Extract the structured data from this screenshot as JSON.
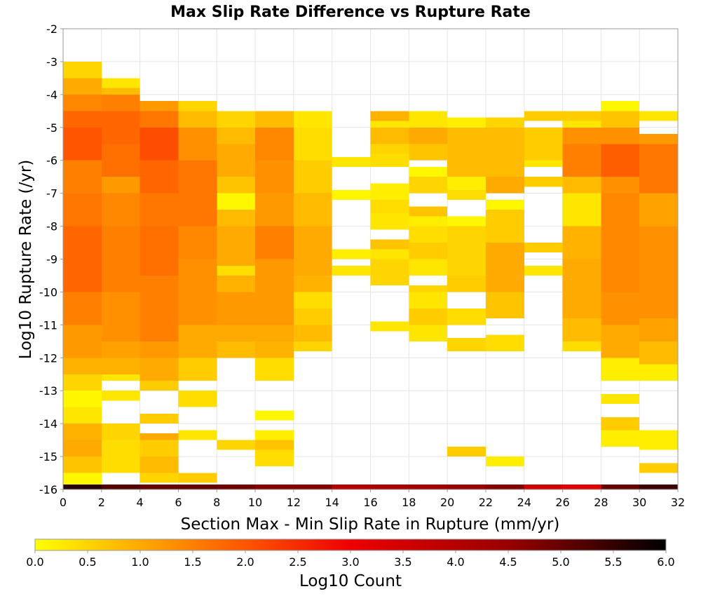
{
  "chart_data": {
    "type": "heatmap",
    "title": "Max Slip Rate Difference vs Rupture Rate",
    "xlabel": "Section Max - Min Slip Rate in Rupture (mm/yr)",
    "ylabel": "Log10 Rupture Rate (/yr)",
    "xlim": [
      0,
      32
    ],
    "ylim": [
      -16,
      -2
    ],
    "x_ticks": [
      "0",
      "2",
      "4",
      "6",
      "8",
      "10",
      "12",
      "14",
      "16",
      "18",
      "20",
      "22",
      "24",
      "26",
      "28",
      "30",
      "32"
    ],
    "y_ticks": [
      "-2",
      "-3",
      "-4",
      "-5",
      "-6",
      "-7",
      "-8",
      "-9",
      "-10",
      "-11",
      "-12",
      "-13",
      "-14",
      "-15",
      "-16"
    ],
    "grid": true,
    "x_bin_width": 2,
    "y_bin_height": 0.25,
    "colorbar": {
      "label": "Log10 Count",
      "range": [
        0,
        6
      ],
      "ticks": [
        "0.0",
        "0.5",
        "1.0",
        "1.5",
        "2.0",
        "2.5",
        "3.0",
        "3.5",
        "4.0",
        "4.5",
        "5.0",
        "5.5",
        "6.0"
      ],
      "stops": [
        {
          "value": 0.0,
          "color": "#ffff00"
        },
        {
          "value": 1.0,
          "color": "#ffaa00"
        },
        {
          "value": 2.0,
          "color": "#ff5500"
        },
        {
          "value": 3.0,
          "color": "#ee0000"
        },
        {
          "value": 4.5,
          "color": "#990000"
        },
        {
          "value": 6.0,
          "color": "#000000"
        }
      ]
    },
    "columns": [
      {
        "x0": 0,
        "x1": 2,
        "segments": [
          [
            -16,
            -15.5,
            0.1
          ],
          [
            -15.5,
            -15,
            0.7
          ],
          [
            -15,
            -14.5,
            1.0
          ],
          [
            -14.5,
            -14,
            0.9
          ],
          [
            -14,
            -13.5,
            0.3
          ],
          [
            -13.5,
            -13,
            0.1
          ],
          [
            -13,
            -12.5,
            0.5
          ],
          [
            -12.5,
            -12,
            0.9
          ],
          [
            -12,
            -11,
            1.2
          ],
          [
            -11,
            -10,
            1.5
          ],
          [
            -10,
            -8,
            1.8
          ],
          [
            -8,
            -7,
            1.6
          ],
          [
            -7,
            -6,
            1.5
          ],
          [
            -6,
            -5,
            2.0
          ],
          [
            -5,
            -4.5,
            1.8
          ],
          [
            -4.5,
            -4,
            1.4
          ],
          [
            -4,
            -3.5,
            1.0
          ],
          [
            -3.5,
            -3,
            0.5
          ]
        ]
      },
      {
        "x0": 2,
        "x1": 4,
        "segments": [
          [
            -15.5,
            -15,
            0.4
          ],
          [
            -15,
            -14.5,
            0.4
          ],
          [
            -14.5,
            -14,
            0.5
          ],
          [
            -13.3,
            -13,
            0.3
          ],
          [
            -12.7,
            -12.5,
            0.3
          ],
          [
            -12.5,
            -12,
            0.9
          ],
          [
            -12,
            -11.5,
            1.1
          ],
          [
            -11.5,
            -10,
            1.3
          ],
          [
            -10,
            -8,
            1.5
          ],
          [
            -8,
            -7,
            1.4
          ],
          [
            -7,
            -6.5,
            1.2
          ],
          [
            -6.5,
            -5.5,
            1.7
          ],
          [
            -5.5,
            -4.5,
            1.8
          ],
          [
            -4.5,
            -4,
            1.5
          ],
          [
            -4,
            -3.8,
            0.8
          ],
          [
            -3.8,
            -3.5,
            0.3
          ]
        ]
      },
      {
        "x0": 4,
        "x1": 6,
        "segments": [
          [
            -15.8,
            -15.5,
            0.5
          ],
          [
            -15.5,
            -15,
            0.8
          ],
          [
            -15,
            -14.5,
            0.6
          ],
          [
            -14.5,
            -14.3,
            1.0
          ],
          [
            -14,
            -13.7,
            0.6
          ],
          [
            -13,
            -12.7,
            0.6
          ],
          [
            -12.7,
            -12,
            1.0
          ],
          [
            -12,
            -11.5,
            1.2
          ],
          [
            -11.5,
            -9.5,
            1.5
          ],
          [
            -9.5,
            -8,
            1.7
          ],
          [
            -8,
            -7,
            1.6
          ],
          [
            -7,
            -6,
            1.8
          ],
          [
            -6,
            -5,
            2.1
          ],
          [
            -5,
            -4.5,
            1.6
          ],
          [
            -4.5,
            -4.2,
            1.2
          ]
        ]
      },
      {
        "x0": 6,
        "x1": 8,
        "segments": [
          [
            -15.8,
            -15.5,
            0.6
          ],
          [
            -14.5,
            -14.2,
            0.3
          ],
          [
            -13.5,
            -13,
            0.4
          ],
          [
            -12.7,
            -12,
            0.6
          ],
          [
            -12,
            -11,
            1.0
          ],
          [
            -11,
            -9,
            1.3
          ],
          [
            -9,
            -8,
            1.4
          ],
          [
            -8,
            -6,
            1.6
          ],
          [
            -6,
            -5,
            1.3
          ],
          [
            -5,
            -4.5,
            0.8
          ],
          [
            -4.5,
            -4.2,
            0.5
          ]
        ]
      },
      {
        "x0": 8,
        "x1": 10,
        "segments": [
          [
            -14.8,
            -14.5,
            0.5
          ],
          [
            -12,
            -11.5,
            0.8
          ],
          [
            -11.5,
            -11,
            1.0
          ],
          [
            -11,
            -10,
            1.2
          ],
          [
            -10,
            -9.5,
            0.9
          ],
          [
            -9.5,
            -9.2,
            0.4
          ],
          [
            -9.2,
            -8,
            1.0
          ],
          [
            -8,
            -7.5,
            0.8
          ],
          [
            -7.5,
            -7,
            0.1
          ],
          [
            -7,
            -6.5,
            0.7
          ],
          [
            -6.5,
            -5.5,
            1.0
          ],
          [
            -5.5,
            -5,
            0.8
          ],
          [
            -5,
            -4.5,
            0.5
          ]
        ]
      },
      {
        "x0": 10,
        "x1": 12,
        "segments": [
          [
            -15.3,
            -14.8,
            0.4
          ],
          [
            -14.8,
            -14.5,
            0.7
          ],
          [
            -14.5,
            -14.2,
            0.2
          ],
          [
            -13.9,
            -13.6,
            0.1
          ],
          [
            -12.7,
            -12,
            0.4
          ],
          [
            -12,
            -11.5,
            0.9
          ],
          [
            -11.5,
            -11,
            1.0
          ],
          [
            -11,
            -9,
            1.2
          ],
          [
            -9,
            -8,
            1.5
          ],
          [
            -8,
            -7,
            1.2
          ],
          [
            -7,
            -6,
            1.3
          ],
          [
            -6,
            -5,
            1.4
          ],
          [
            -5,
            -4.5,
            0.8
          ]
        ]
      },
      {
        "x0": 12,
        "x1": 14,
        "segments": [
          [
            -11.8,
            -11.5,
            0.5
          ],
          [
            -11.5,
            -11,
            0.8
          ],
          [
            -11,
            -10.5,
            0.6
          ],
          [
            -10.5,
            -10,
            0.4
          ],
          [
            -10,
            -9.5,
            0.9
          ],
          [
            -9.5,
            -8,
            1.0
          ],
          [
            -8,
            -7,
            0.8
          ],
          [
            -7,
            -6,
            0.6
          ],
          [
            -6,
            -5,
            0.4
          ],
          [
            -5,
            -4.5,
            0.3
          ]
        ]
      },
      {
        "x0": 14,
        "x1": 16,
        "segments": [
          [
            -9.5,
            -9.2,
            0.3
          ],
          [
            -9,
            -8.7,
            0.2
          ],
          [
            -7.2,
            -6.9,
            0.1
          ],
          [
            -6.2,
            -5.9,
            0.3
          ]
        ]
      },
      {
        "x0": 16,
        "x1": 18,
        "segments": [
          [
            -11.2,
            -10.9,
            0.3
          ],
          [
            -9.8,
            -9.5,
            0.5
          ],
          [
            -9.5,
            -9,
            0.5
          ],
          [
            -9,
            -8.7,
            0.3
          ],
          [
            -8.7,
            -8.4,
            0.7
          ],
          [
            -8.1,
            -7.6,
            0.3
          ],
          [
            -7.6,
            -7.2,
            0.4
          ],
          [
            -7.2,
            -6.7,
            0.2
          ],
          [
            -6.2,
            -5.8,
            0.4
          ],
          [
            -5.8,
            -5.5,
            0.5
          ],
          [
            -5.5,
            -5,
            0.8
          ],
          [
            -5,
            -4.8,
            0.3
          ],
          [
            -4.8,
            -4.5,
            0.9
          ]
        ]
      },
      {
        "x0": 18,
        "x1": 20,
        "segments": [
          [
            -11.5,
            -11,
            0.3
          ],
          [
            -11,
            -10.5,
            0.6
          ],
          [
            -10.5,
            -10,
            0.3
          ],
          [
            -10,
            -9.8,
            0.5
          ],
          [
            -9.5,
            -9,
            0.3
          ],
          [
            -9,
            -8.5,
            0.6
          ],
          [
            -8.5,
            -8,
            0.4
          ],
          [
            -8,
            -7.7,
            0.2
          ],
          [
            -7.7,
            -7.4,
            0.7
          ],
          [
            -7,
            -6.5,
            0.5
          ],
          [
            -6.5,
            -6.2,
            0.1
          ],
          [
            -6,
            -5.5,
            0.7
          ],
          [
            -5.5,
            -5,
            1.0
          ],
          [
            -5,
            -4.5,
            0.3
          ]
        ]
      },
      {
        "x0": 20,
        "x1": 22,
        "segments": [
          [
            -15,
            -14.7,
            0.6
          ],
          [
            -11.8,
            -11.4,
            0.5
          ],
          [
            -11,
            -10.5,
            0.4
          ],
          [
            -10,
            -9.5,
            0.6
          ],
          [
            -9.5,
            -8,
            0.5
          ],
          [
            -8,
            -7.7,
            0.1
          ],
          [
            -7.2,
            -6.9,
            0.4
          ],
          [
            -6.9,
            -6.5,
            0.2
          ],
          [
            -6.5,
            -5,
            0.8
          ],
          [
            -5,
            -4.7,
            0.2
          ]
        ]
      },
      {
        "x0": 22,
        "x1": 24,
        "segments": [
          [
            -15.3,
            -15,
            0.2
          ],
          [
            -11.8,
            -11.3,
            0.4
          ],
          [
            -10.8,
            -10,
            0.7
          ],
          [
            -10,
            -8.5,
            1.0
          ],
          [
            -8.5,
            -7.5,
            0.6
          ],
          [
            -7.5,
            -7.2,
            0.1
          ],
          [
            -7,
            -6.5,
            1.0
          ],
          [
            -6.5,
            -5,
            0.8
          ],
          [
            -5,
            -4.7,
            0.5
          ]
        ]
      },
      {
        "x0": 24,
        "x1": 26,
        "segments": [
          [
            -9.5,
            -9.2,
            0.3
          ],
          [
            -8.8,
            -8.5,
            0.6
          ],
          [
            -6.8,
            -6.5,
            0.6
          ],
          [
            -6.2,
            -6,
            0.3
          ],
          [
            -6,
            -5,
            0.6
          ],
          [
            -4.8,
            -4.5,
            0.6
          ]
        ]
      },
      {
        "x0": 26,
        "x1": 28,
        "segments": [
          [
            -11.8,
            -11.5,
            0.4
          ],
          [
            -11.5,
            -10.8,
            0.8
          ],
          [
            -10.8,
            -9,
            1.0
          ],
          [
            -9,
            -8,
            0.9
          ],
          [
            -8,
            -7,
            0.3
          ],
          [
            -7,
            -6.5,
            0.8
          ],
          [
            -6.5,
            -5.5,
            1.5
          ],
          [
            -5.5,
            -5,
            1.3
          ],
          [
            -5,
            -4.8,
            0.3
          ],
          [
            -4.8,
            -4.5,
            0.6
          ]
        ]
      },
      {
        "x0": 28,
        "x1": 30,
        "segments": [
          [
            -14.7,
            -14.2,
            0.2
          ],
          [
            -14.2,
            -13.8,
            0.6
          ],
          [
            -13.4,
            -13.1,
            0.3
          ],
          [
            -12.7,
            -12,
            0.2
          ],
          [
            -12,
            -11,
            1.0
          ],
          [
            -11,
            -10,
            1.3
          ],
          [
            -10,
            -7,
            1.4
          ],
          [
            -7,
            -6.5,
            1.3
          ],
          [
            -6.5,
            -5.5,
            1.9
          ],
          [
            -5.5,
            -5,
            1.3
          ],
          [
            -5,
            -4.5,
            0.7
          ],
          [
            -4.5,
            -4.2,
            0.1
          ]
        ]
      },
      {
        "x0": 30,
        "x1": 32,
        "segments": [
          [
            -15.5,
            -15.2,
            0.6
          ],
          [
            -14.8,
            -14.2,
            0.2
          ],
          [
            -12.7,
            -12.2,
            0.2
          ],
          [
            -12.2,
            -11.5,
            0.8
          ],
          [
            -11.5,
            -10.8,
            1.1
          ],
          [
            -10.8,
            -8,
            1.3
          ],
          [
            -8,
            -7,
            1.1
          ],
          [
            -7,
            -5.5,
            1.6
          ],
          [
            -5.5,
            -5.2,
            1.2
          ],
          [
            -4.8,
            -4.5,
            0.3
          ]
        ]
      }
    ],
    "bottom_row": {
      "y0": -16,
      "y1": -15.85,
      "values": [
        5.6,
        5.2,
        5.0,
        5.0,
        4.9,
        4.7,
        4.7,
        4.0,
        4.2,
        4.3,
        4.5,
        4.7,
        3.5,
        3.2,
        5.0,
        5.4
      ]
    }
  }
}
